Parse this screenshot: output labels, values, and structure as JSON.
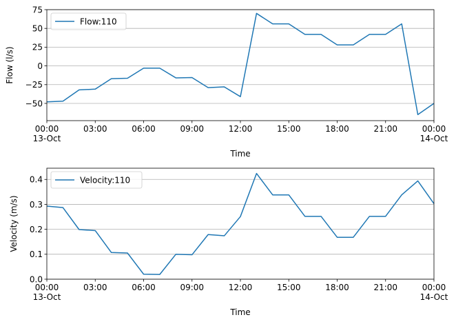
{
  "chart_data": [
    {
      "type": "line",
      "xlabel": "Time",
      "ylabel": "Flow (l/s)",
      "x": [
        0,
        1,
        2,
        3,
        4,
        5,
        6,
        7,
        8,
        9,
        10,
        11,
        12,
        13,
        14,
        15,
        16,
        17,
        18,
        19,
        20,
        21,
        22,
        23,
        24
      ],
      "series": [
        {
          "name": "Flow:110",
          "color": "#1f77b4",
          "values": [
            -48,
            -47,
            -32,
            -31,
            -17,
            -16.5,
            -3,
            -3,
            -16,
            -15.5,
            -29,
            -28,
            -41,
            70,
            56,
            56,
            42,
            42,
            28,
            28,
            42,
            42,
            56,
            -65,
            -50
          ]
        }
      ],
      "xlim": [
        0,
        24
      ],
      "ylim": [
        -73,
        75
      ],
      "xticks": [
        0,
        3,
        6,
        9,
        12,
        15,
        18,
        21,
        24
      ],
      "xticklabels": [
        "00:00\n13-Oct",
        "03:00",
        "06:00",
        "09:00",
        "12:00",
        "15:00",
        "18:00",
        "21:00",
        "00:00\n14-Oct"
      ],
      "yticks": [
        -50,
        -25,
        0,
        25,
        50,
        75
      ],
      "yticklabels": [
        "−50",
        "−25",
        "0",
        "25",
        "50",
        "75"
      ],
      "grid": "horizontal",
      "legend_loc": "upper left"
    },
    {
      "type": "line",
      "xlabel": "Time",
      "ylabel": "Velocity (m/s)",
      "x": [
        0,
        1,
        2,
        3,
        4,
        5,
        6,
        7,
        8,
        9,
        10,
        11,
        12,
        13,
        14,
        15,
        16,
        17,
        18,
        19,
        20,
        21,
        22,
        23,
        24
      ],
      "series": [
        {
          "name": "Velocity:110",
          "color": "#1f77b4",
          "values": [
            0.293,
            0.287,
            0.199,
            0.195,
            0.107,
            0.105,
            0.02,
            0.019,
            0.1,
            0.098,
            0.179,
            0.174,
            0.251,
            0.424,
            0.338,
            0.338,
            0.252,
            0.252,
            0.168,
            0.168,
            0.252,
            0.252,
            0.338,
            0.394,
            0.303
          ]
        }
      ],
      "xlim": [
        0,
        24
      ],
      "ylim": [
        0,
        0.445
      ],
      "xticks": [
        0,
        3,
        6,
        9,
        12,
        15,
        18,
        21,
        24
      ],
      "xticklabels": [
        "00:00\n13-Oct",
        "03:00",
        "06:00",
        "09:00",
        "12:00",
        "15:00",
        "18:00",
        "21:00",
        "00:00\n14-Oct"
      ],
      "yticks": [
        0,
        0.1,
        0.2,
        0.3,
        0.4
      ],
      "yticklabels": [
        "0.0",
        "0.1",
        "0.2",
        "0.3",
        "0.4"
      ],
      "grid": "horizontal",
      "legend_loc": "upper left"
    }
  ]
}
